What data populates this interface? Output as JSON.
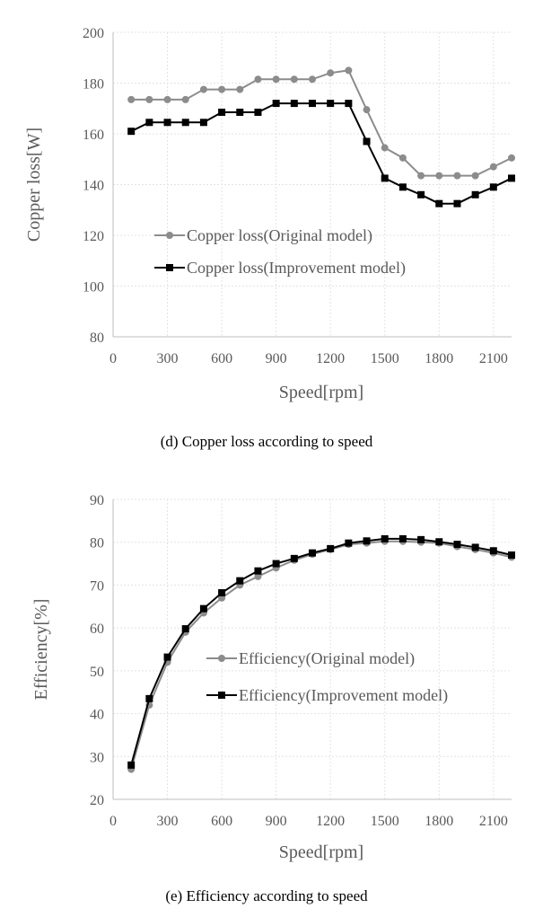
{
  "chart_data": [
    {
      "type": "line",
      "caption": "(d)  Copper  loss  according  to  speed",
      "xlabel": "Speed[rpm]",
      "ylabel": "Copper loss[W]",
      "xlim": [
        0,
        2200
      ],
      "ylim": [
        80,
        200
      ],
      "x_ticks": [
        "0",
        "300",
        "600",
        "900",
        "1200",
        "1500",
        "1800",
        "2100"
      ],
      "y_ticks": [
        "200",
        "180",
        "160",
        "140",
        "120",
        "100",
        "80"
      ],
      "grid": true,
      "legend_position": "center-left",
      "x": [
        100,
        200,
        300,
        400,
        500,
        600,
        700,
        800,
        900,
        1000,
        1100,
        1200,
        1300,
        1400,
        1500,
        1600,
        1700,
        1800,
        1900,
        2000,
        2100,
        2200
      ],
      "series": [
        {
          "name": "Copper loss(Original model)",
          "color": "#8c8c8c",
          "marker": "circle",
          "values": [
            173.5,
            173.5,
            173.5,
            173.5,
            177.5,
            177.5,
            177.5,
            181.5,
            181.5,
            181.5,
            181.5,
            184.0,
            185.0,
            169.5,
            154.5,
            150.5,
            143.5,
            143.5,
            143.5,
            143.5,
            147.0,
            150.5
          ]
        },
        {
          "name": "Copper loss(Improvement model)",
          "color": "#000000",
          "marker": "square",
          "values": [
            161.0,
            164.5,
            164.5,
            164.5,
            164.5,
            168.5,
            168.5,
            168.5,
            172.0,
            172.0,
            172.0,
            172.0,
            172.0,
            157.0,
            142.5,
            139.0,
            136.0,
            132.5,
            132.5,
            136.0,
            139.0,
            142.5
          ]
        }
      ]
    },
    {
      "type": "line",
      "caption": "(e)  Efficiency  according  to  speed",
      "xlabel": "Speed[rpm]",
      "ylabel": "Efficiency[%]",
      "xlim": [
        0,
        2200
      ],
      "ylim": [
        20,
        90
      ],
      "x_ticks": [
        "0",
        "300",
        "600",
        "900",
        "1200",
        "1500",
        "1800",
        "2100"
      ],
      "y_ticks": [
        "90",
        "80",
        "70",
        "60",
        "50",
        "40",
        "30",
        "20"
      ],
      "grid": true,
      "legend_position": "center-right",
      "x": [
        100,
        200,
        300,
        400,
        500,
        600,
        700,
        800,
        900,
        1000,
        1100,
        1200,
        1300,
        1400,
        1500,
        1600,
        1700,
        1800,
        1900,
        2000,
        2100,
        2200
      ],
      "series": [
        {
          "name": "Efficiency(Original model)",
          "color": "#8c8c8c",
          "marker": "circle",
          "values": [
            27.0,
            42.0,
            52.0,
            59.0,
            63.5,
            67.0,
            70.0,
            72.0,
            74.0,
            75.8,
            77.2,
            78.3,
            79.5,
            79.8,
            80.2,
            80.2,
            80.0,
            79.8,
            79.0,
            78.3,
            77.5,
            76.5
          ]
        },
        {
          "name": "Efficiency(Improvement model)",
          "color": "#000000",
          "marker": "square",
          "values": [
            28.0,
            43.5,
            53.2,
            59.8,
            64.5,
            68.2,
            71.0,
            73.3,
            75.0,
            76.2,
            77.5,
            78.5,
            79.8,
            80.3,
            80.8,
            80.8,
            80.6,
            80.1,
            79.5,
            78.8,
            78.0,
            77.0
          ]
        }
      ]
    }
  ]
}
